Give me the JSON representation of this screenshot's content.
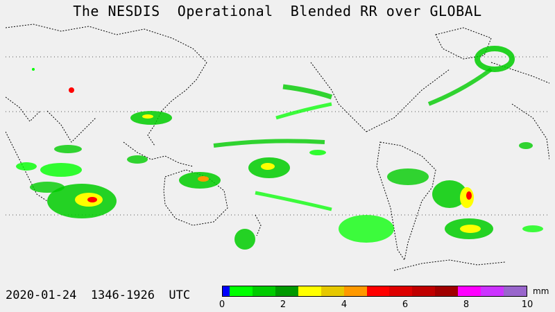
{
  "title": "The NESDIS  Operational  Blended RR over GLOBAL",
  "timestamp": "2020-01-24  1346-1926  UTC",
  "colorbar": {
    "unit": "mm",
    "tick_labels": [
      "0",
      "2",
      "4",
      "6",
      "8",
      "10"
    ],
    "colors": [
      "#0000ff",
      "#00ff00",
      "#00cc00",
      "#009900",
      "#ffff00",
      "#e6c800",
      "#ff9900",
      "#ff0000",
      "#dd0000",
      "#c00000",
      "#a00000",
      "#ff00ff",
      "#cc33ff",
      "#9966cc"
    ]
  },
  "map": {
    "background": "#f0f0f0",
    "coastline_color": "#000000",
    "rain_colors": {
      "light": "#00ff00",
      "moderate": "#00cc00",
      "heavy": "#009900",
      "intense": "#ffff00",
      "very_intense": "#ff0000"
    }
  }
}
